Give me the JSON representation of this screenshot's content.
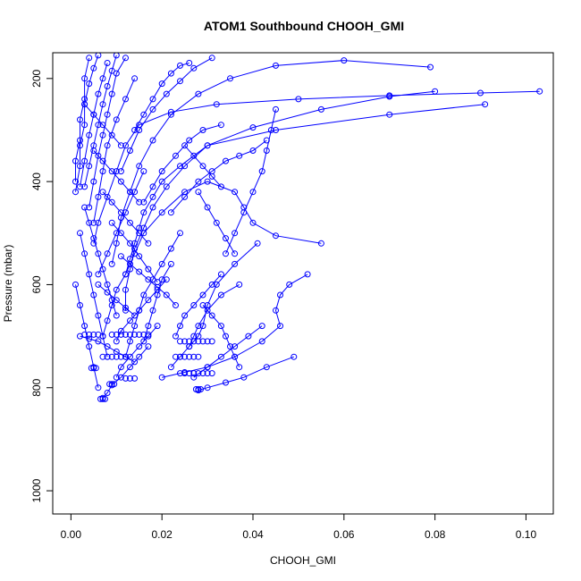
{
  "chart_data": {
    "type": "line",
    "title": "ATOM1 Southbound CHOOH_GMI",
    "xlabel": "CHOOH_GMI",
    "ylabel": "Pressure (mbar)",
    "xlim": [
      -0.004,
      0.106
    ],
    "ylim": [
      1045,
      150
    ],
    "y_inverted": true,
    "grid": false,
    "legend": "none",
    "x_ticks": [
      0.0,
      0.02,
      0.04,
      0.06,
      0.08,
      0.1
    ],
    "x_tick_labels": [
      "0.00",
      "0.02",
      "0.04",
      "0.06",
      "0.08",
      "0.10"
    ],
    "y_ticks": [
      200,
      400,
      600,
      800,
      1000
    ],
    "y_tick_labels": [
      "200",
      "400",
      "600",
      "800",
      "1000"
    ],
    "series_color": "#0000ff",
    "series": [
      {
        "x": [
          0.08,
          0.07,
          0.055,
          0.04,
          0.03,
          0.024,
          0.02,
          0.018,
          0.016,
          0.015,
          0.014,
          0.013,
          0.012,
          0.01,
          0.009,
          0.008,
          0.007
        ],
        "y": [
          225,
          235,
          260,
          295,
          330,
          370,
          400,
          430,
          460,
          490,
          520,
          550,
          580,
          610,
          640,
          670,
          700
        ]
      },
      {
        "x": [
          0.103,
          0.09,
          0.07,
          0.05,
          0.032,
          0.022,
          0.015,
          0.012,
          0.01,
          0.008,
          0.006,
          0.005
        ],
        "y": [
          225,
          228,
          233,
          240,
          250,
          265,
          290,
          330,
          380,
          430,
          480,
          520
        ]
      },
      {
        "x": [
          0.091,
          0.07,
          0.045,
          0.03,
          0.025,
          0.021,
          0.018,
          0.016,
          0.014,
          0.013,
          0.012,
          0.012
        ],
        "y": [
          250,
          270,
          300,
          330,
          370,
          410,
          450,
          490,
          530,
          570,
          610,
          650
        ]
      },
      {
        "x": [
          0.079,
          0.06,
          0.045,
          0.035,
          0.028,
          0.022,
          0.018,
          0.015,
          0.013,
          0.011,
          0.01,
          0.009
        ],
        "y": [
          178,
          165,
          175,
          200,
          230,
          270,
          320,
          370,
          420,
          470,
          520,
          560
        ]
      },
      {
        "x": [
          0.055,
          0.045,
          0.04,
          0.038,
          0.036,
          0.03,
          0.025,
          0.02,
          0.016,
          0.014,
          0.012
        ],
        "y": [
          520,
          505,
          480,
          450,
          420,
          400,
          420,
          460,
          500,
          540,
          580
        ]
      },
      {
        "x": [
          0.052,
          0.048,
          0.046,
          0.045,
          0.046,
          0.042,
          0.036,
          0.03,
          0.025,
          0.02
        ],
        "y": [
          580,
          600,
          620,
          650,
          680,
          710,
          740,
          760,
          770,
          780
        ]
      },
      {
        "x": [
          0.049,
          0.043,
          0.038,
          0.034,
          0.03,
          0.028
        ],
        "y": [
          740,
          760,
          780,
          790,
          800,
          805
        ]
      },
      {
        "x": [
          0.045,
          0.044,
          0.043,
          0.042,
          0.04,
          0.038,
          0.036,
          0.034
        ],
        "y": [
          260,
          300,
          340,
          380,
          420,
          460,
          500,
          540
        ]
      },
      {
        "x": [
          0.043,
          0.04,
          0.037,
          0.034,
          0.031,
          0.028,
          0.025,
          0.022
        ],
        "y": [
          320,
          340,
          350,
          360,
          380,
          400,
          430,
          460
        ]
      },
      {
        "x": [
          0.041,
          0.036,
          0.032,
          0.03,
          0.029,
          0.028,
          0.026,
          0.024,
          0.022
        ],
        "y": [
          520,
          560,
          600,
          640,
          680,
          700,
          720,
          740,
          760
        ]
      },
      {
        "x": [
          0.042,
          0.039,
          0.036,
          0.033,
          0.03,
          0.027
        ],
        "y": [
          680,
          700,
          720,
          740,
          760,
          780
        ]
      },
      {
        "x": [
          0.037,
          0.033,
          0.03,
          0.028,
          0.027,
          0.026
        ],
        "y": [
          600,
          620,
          650,
          680,
          700,
          720
        ]
      },
      {
        "x": [
          0.033,
          0.031,
          0.029,
          0.027,
          0.025,
          0.024,
          0.023
        ],
        "y": [
          580,
          600,
          620,
          640,
          660,
          680,
          700
        ]
      },
      {
        "x": [
          0.033,
          0.029,
          0.026,
          0.023,
          0.02,
          0.018,
          0.016
        ],
        "y": [
          290,
          300,
          320,
          350,
          380,
          410,
          440
        ]
      },
      {
        "x": [
          0.031,
          0.027,
          0.024,
          0.021,
          0.018,
          0.015,
          0.013,
          0.011
        ],
        "y": [
          160,
          180,
          205,
          230,
          260,
          300,
          340,
          380
        ]
      },
      {
        "x": [
          0.026,
          0.024,
          0.022,
          0.02,
          0.018,
          0.016,
          0.014
        ],
        "y": [
          170,
          175,
          190,
          210,
          240,
          270,
          300
        ]
      },
      {
        "x": [
          0.024,
          0.022,
          0.02,
          0.018,
          0.016,
          0.015,
          0.014,
          0.013,
          0.012
        ],
        "y": [
          500,
          530,
          560,
          590,
          620,
          650,
          680,
          710,
          740
        ]
      },
      {
        "x": [
          0.022,
          0.02,
          0.019,
          0.018,
          0.017,
          0.016
        ],
        "y": [
          560,
          590,
          620,
          650,
          680,
          710
        ]
      },
      {
        "x": [
          0.021,
          0.019,
          0.017,
          0.015,
          0.013,
          0.011,
          0.01
        ],
        "y": [
          590,
          610,
          630,
          650,
          670,
          690,
          710
        ]
      },
      {
        "x": [
          0.019,
          0.017,
          0.015,
          0.013,
          0.011,
          0.01
        ],
        "y": [
          680,
          700,
          720,
          740,
          760,
          780
        ]
      },
      {
        "x": [
          0.017,
          0.015,
          0.013,
          0.011,
          0.009,
          0.008,
          0.007
        ],
        "y": [
          720,
          740,
          760,
          780,
          795,
          810,
          820
        ]
      },
      {
        "x": [
          0.016,
          0.014,
          0.012,
          0.01,
          0.008,
          0.006
        ],
        "y": [
          380,
          420,
          460,
          500,
          540,
          580
        ]
      },
      {
        "x": [
          0.014,
          0.012,
          0.01,
          0.008,
          0.007,
          0.006,
          0.005
        ],
        "y": [
          200,
          240,
          280,
          330,
          380,
          430,
          480
        ]
      },
      {
        "x": [
          0.012,
          0.01,
          0.009,
          0.008,
          0.007,
          0.006,
          0.005,
          0.004
        ],
        "y": [
          160,
          190,
          230,
          270,
          310,
          350,
          400,
          450
        ]
      },
      {
        "x": [
          0.01,
          0.009,
          0.008,
          0.007,
          0.006,
          0.005,
          0.004,
          0.003
        ],
        "y": [
          155,
          185,
          215,
          250,
          290,
          330,
          370,
          410
        ]
      },
      {
        "x": [
          0.008,
          0.007,
          0.006,
          0.005,
          0.004,
          0.003,
          0.002
        ],
        "y": [
          170,
          200,
          230,
          270,
          310,
          360,
          410
        ]
      },
      {
        "x": [
          0.006,
          0.005,
          0.004,
          0.003,
          0.003,
          0.002,
          0.002,
          0.001
        ],
        "y": [
          155,
          180,
          210,
          250,
          290,
          330,
          370,
          420
        ]
      },
      {
        "x": [
          0.004,
          0.003,
          0.003,
          0.002,
          0.002,
          0.001,
          0.001
        ],
        "y": [
          160,
          200,
          240,
          280,
          320,
          360,
          400
        ]
      },
      {
        "x": [
          0.003,
          0.004,
          0.005,
          0.006,
          0.007,
          0.008,
          0.009,
          0.01
        ],
        "y": [
          450,
          480,
          510,
          540,
          570,
          600,
          630,
          660
        ]
      },
      {
        "x": [
          0.002,
          0.003,
          0.004,
          0.005,
          0.006,
          0.007,
          0.008
        ],
        "y": [
          500,
          540,
          580,
          620,
          660,
          700,
          740
        ]
      },
      {
        "x": [
          0.001,
          0.002,
          0.003,
          0.004,
          0.005,
          0.006
        ],
        "y": [
          600,
          640,
          680,
          720,
          760,
          800
        ]
      },
      {
        "x": [
          0.002,
          0.004,
          0.006,
          0.008,
          0.01,
          0.012,
          0.014
        ],
        "y": [
          700,
          705,
          710,
          720,
          730,
          740,
          750
        ]
      },
      {
        "x": [
          0.011,
          0.013,
          0.015,
          0.017,
          0.019,
          0.021,
          0.023
        ],
        "y": [
          545,
          560,
          575,
          590,
          605,
          620,
          640
        ]
      },
      {
        "x": [
          0.007,
          0.009,
          0.011,
          0.013,
          0.015,
          0.017
        ],
        "y": [
          420,
          440,
          460,
          480,
          500,
          520
        ]
      },
      {
        "x": [
          0.005,
          0.007,
          0.009,
          0.011,
          0.013,
          0.015
        ],
        "y": [
          340,
          360,
          380,
          400,
          420,
          440
        ]
      },
      {
        "x": [
          0.003,
          0.005,
          0.007,
          0.009,
          0.011
        ],
        "y": [
          250,
          270,
          290,
          310,
          330
        ]
      },
      {
        "x": [
          0.029,
          0.031,
          0.033,
          0.034,
          0.035,
          0.036,
          0.037
        ],
        "y": [
          640,
          660,
          680,
          700,
          720,
          740,
          760
        ]
      },
      {
        "x": [
          0.028,
          0.03,
          0.032,
          0.034,
          0.036
        ],
        "y": [
          420,
          450,
          480,
          510,
          540
        ]
      },
      {
        "x": [
          0.025,
          0.027,
          0.029,
          0.031,
          0.033
        ],
        "y": [
          330,
          350,
          370,
          390,
          410
        ]
      },
      {
        "x": [
          0.009,
          0.011,
          0.013,
          0.015,
          0.017,
          0.019
        ],
        "y": [
          480,
          500,
          520,
          545,
          570,
          595
        ]
      },
      {
        "x": [
          0.006,
          0.008,
          0.01,
          0.012,
          0.014
        ],
        "y": [
          600,
          615,
          630,
          645,
          660
        ]
      }
    ],
    "clusters": [
      {
        "x": [
          0.009,
          0.01,
          0.011,
          0.012,
          0.013,
          0.014,
          0.015,
          0.016,
          0.017
        ],
        "y": [
          697,
          697,
          697,
          697,
          697,
          697,
          697,
          697,
          697
        ]
      },
      {
        "x": [
          0.024,
          0.025,
          0.026,
          0.027,
          0.028,
          0.029,
          0.03,
          0.031
        ],
        "y": [
          710,
          710,
          710,
          710,
          710,
          710,
          710,
          710
        ]
      },
      {
        "x": [
          0.023,
          0.024,
          0.025,
          0.026,
          0.027,
          0.028
        ],
        "y": [
          740,
          740,
          740,
          740,
          740,
          740
        ]
      },
      {
        "x": [
          0.024,
          0.025,
          0.026,
          0.027,
          0.028,
          0.029,
          0.03,
          0.031
        ],
        "y": [
          772,
          772,
          772,
          772,
          772,
          772,
          772,
          772
        ]
      },
      {
        "x": [
          0.0275,
          0.028,
          0.0285
        ],
        "y": [
          803,
          803,
          803
        ]
      },
      {
        "x": [
          0.0065,
          0.007,
          0.0075
        ],
        "y": [
          822,
          822,
          822
        ]
      },
      {
        "x": [
          0.003,
          0.004,
          0.005,
          0.006
        ],
        "y": [
          697,
          697,
          697,
          697
        ]
      },
      {
        "x": [
          0.0045,
          0.005,
          0.0055
        ],
        "y": [
          762,
          762,
          762
        ]
      },
      {
        "x": [
          0.007,
          0.008,
          0.009,
          0.01,
          0.011,
          0.012
        ],
        "y": [
          740,
          740,
          740,
          740,
          740,
          740
        ]
      },
      {
        "x": [
          0.012,
          0.013,
          0.014
        ],
        "y": [
          782,
          782,
          782
        ]
      },
      {
        "x": [
          0.0085,
          0.009,
          0.0095
        ],
        "y": [
          793,
          793,
          793
        ]
      }
    ]
  }
}
